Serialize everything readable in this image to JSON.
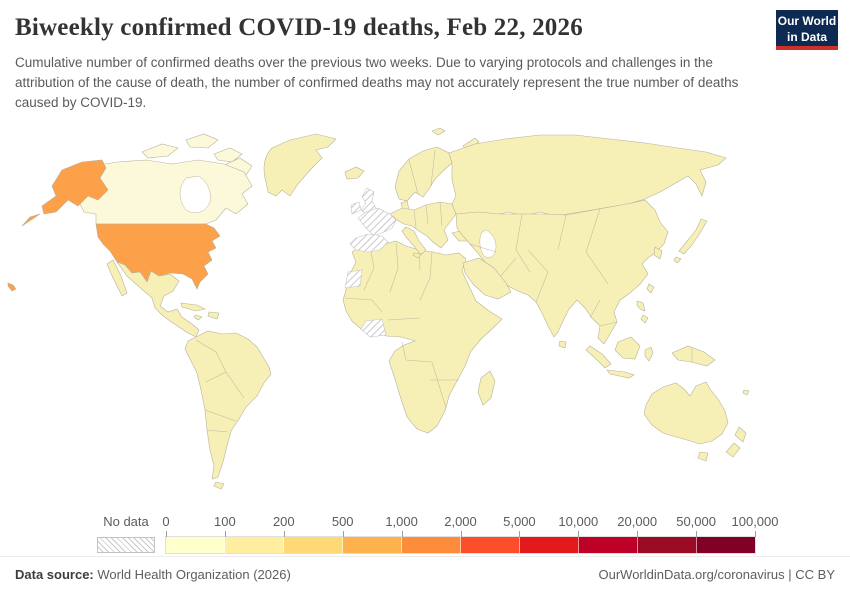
{
  "header": {
    "title": "Biweekly confirmed COVID-19 deaths, Feb 22, 2026",
    "subtitle": "Cumulative number of confirmed deaths over the previous two weeks. Due to varying protocols and challenges in the attribution of the cause of death, the number of confirmed deaths may not accurately represent the true number of deaths caused by COVID-19.",
    "logo": {
      "line1": "Our World",
      "line2": "in Data",
      "bg_color": "#0d2a52",
      "accent_color": "#cf3129"
    }
  },
  "legend": {
    "no_data_label": "No data",
    "ticks": [
      "0",
      "100",
      "200",
      "500",
      "1,000",
      "2,000",
      "5,000",
      "10,000",
      "20,000",
      "50,000",
      "100,000"
    ],
    "bin_colors": [
      "#ffffcc",
      "#ffeda0",
      "#fed976",
      "#feb24c",
      "#fd8d3c",
      "#fc4e2a",
      "#e31a1c",
      "#bd0026",
      "#9c0b25",
      "#800026"
    ]
  },
  "map": {
    "colors": {
      "country_default": "#f7f0b6",
      "country_light": "#fcf9da",
      "united_states": "#fca04a",
      "border": "#b8b29c",
      "ocean": "#ffffff"
    }
  },
  "footer": {
    "source_label": "Data source:",
    "source_text": " World Health Organization (2026)",
    "attribution": "OurWorldinData.org/coronavirus | CC BY"
  },
  "chart_data": {
    "type": "heatmap",
    "subtype": "world-choropleth",
    "title": "Biweekly confirmed COVID-19 deaths, Feb 22, 2026",
    "date": "Feb 22, 2026",
    "unit": "confirmed COVID-19 deaths over the previous two weeks",
    "legend_position": "bottom",
    "bins": [
      {
        "range": "0-100",
        "color": "#ffffcc"
      },
      {
        "range": "100-200",
        "color": "#ffeda0"
      },
      {
        "range": "200-500",
        "color": "#fed976"
      },
      {
        "range": "500-1,000",
        "color": "#feb24c"
      },
      {
        "range": "1,000-2,000",
        "color": "#fd8d3c"
      },
      {
        "range": "2,000-5,000",
        "color": "#fc4e2a"
      },
      {
        "range": "5,000-10,000",
        "color": "#e31a1c"
      },
      {
        "range": "10,000-20,000",
        "color": "#bd0026"
      },
      {
        "range": "20,000-50,000",
        "color": "#9c0b25"
      },
      {
        "range": "50,000-100,000",
        "color": "#800026"
      }
    ],
    "observations": [
      {
        "country": "United States (incl. Alaska, Hawaii)",
        "value_bin": "1,000-2,000",
        "color_shown": "#fca04a"
      },
      {
        "country": "Canada",
        "value_bin": "0-100 (lightest shade)",
        "color_shown": "#fcf9da"
      },
      {
        "country": "All other reporting countries",
        "value_bin": "0-100",
        "color_shown": "#f7f0b6"
      }
    ],
    "no_data_countries_visible": [
      "United Kingdom",
      "Ireland",
      "France",
      "Spain",
      "Portugal",
      "Western Sahara",
      "Côte d'Ivoire"
    ]
  }
}
